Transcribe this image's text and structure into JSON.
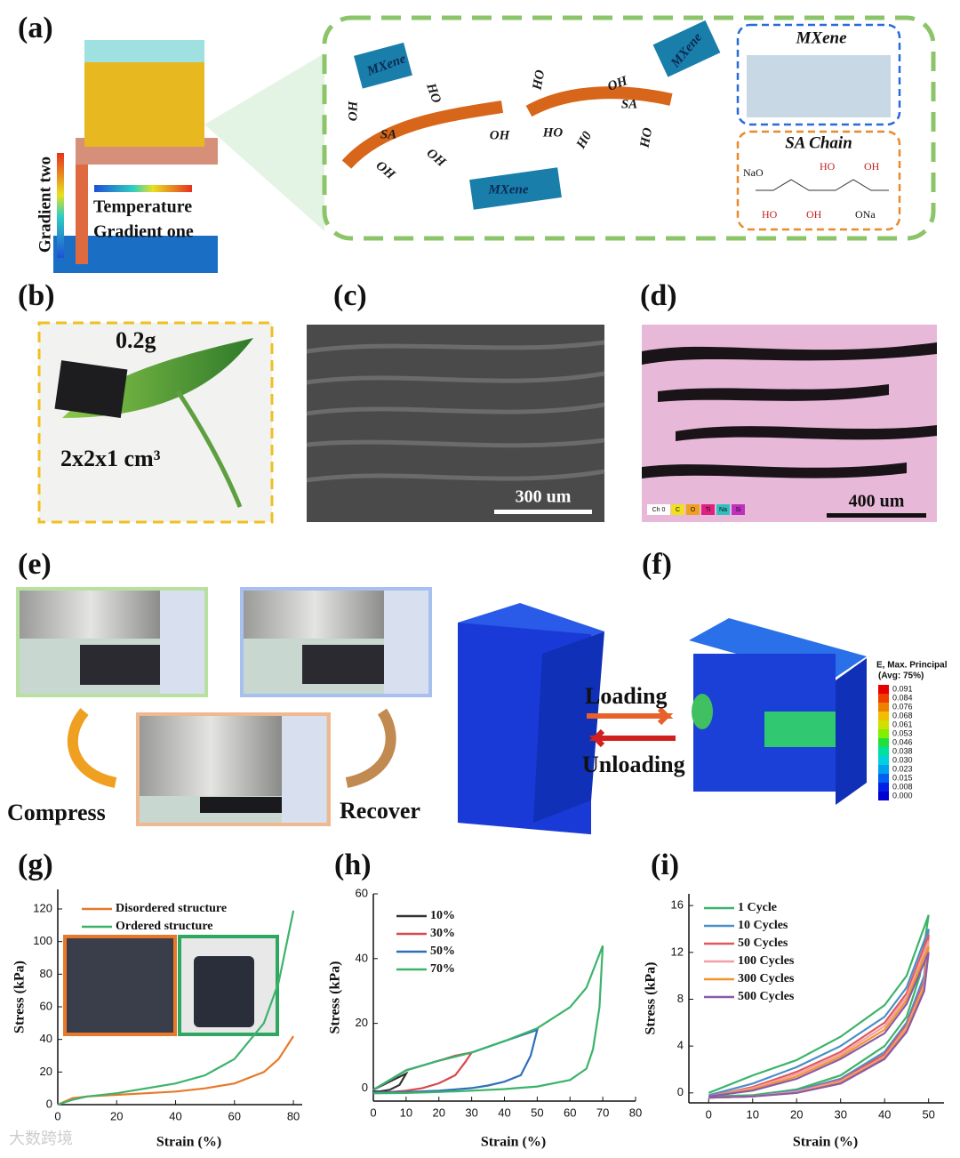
{
  "panels": {
    "a": {
      "label": "(a)",
      "gradient_two": "Gradient two",
      "temperature": "Temperature",
      "gradient_one": "Gradient one",
      "diagram": [
        "MXene",
        "OH",
        "HO",
        "SA",
        "OH",
        "OH",
        "OH",
        "HO",
        "MXene",
        "HO",
        "OH",
        "MXene",
        "SA",
        "H0",
        "HO"
      ],
      "mxene_box": "MXene",
      "sa_box": "SA Chain",
      "chem": [
        "NaO",
        "HO",
        "OH",
        "HO",
        "OH",
        "ONa"
      ]
    },
    "b": {
      "label": "(b)",
      "mass": "0.2g",
      "size": "2x2x1 cm³"
    },
    "c": {
      "label": "(c)",
      "scale": "300 um"
    },
    "d": {
      "label": "(d)",
      "scale": "400 um",
      "elements": [
        "Ch 0",
        "C",
        "O",
        "Ti",
        "Na",
        "Si"
      ]
    },
    "e": {
      "label": "(e)",
      "compress": "Compress",
      "recover": "Recover"
    },
    "f": {
      "label": "(f)",
      "loading": "Loading",
      "unloading": "Unloading",
      "legend_title": "E, Max. Principal",
      "legend_sub": "(Avg: 75%)",
      "scale": [
        "0.091",
        "0.084",
        "0.076",
        "0.068",
        "0.061",
        "0.053",
        "0.046",
        "0.038",
        "0.030",
        "0.023",
        "0.015",
        "0.008",
        "0.000"
      ]
    },
    "watermark": "大数跨境"
  },
  "chart_data": [
    {
      "type": "line",
      "panel": "(g)",
      "xlabel": "Strain (%)",
      "ylabel": "Stress (kPa)",
      "xlim": [
        0,
        83
      ],
      "ylim": [
        0,
        132
      ],
      "xticks": [
        0,
        20,
        40,
        60,
        80
      ],
      "yticks": [
        0,
        20,
        40,
        60,
        80,
        100,
        120
      ],
      "series": [
        {
          "name": "Disordered structure",
          "color": "#e8792a",
          "x": [
            0,
            5,
            10,
            20,
            30,
            40,
            50,
            60,
            70,
            75,
            80
          ],
          "values": [
            0,
            4,
            5,
            6,
            7,
            8,
            10,
            13,
            20,
            28,
            42
          ]
        },
        {
          "name": "Ordered structure",
          "color": "#3cb36a",
          "x": [
            0,
            5,
            10,
            20,
            30,
            40,
            50,
            60,
            70,
            75,
            80
          ],
          "values": [
            0,
            3,
            5,
            7,
            10,
            13,
            18,
            28,
            50,
            75,
            119
          ]
        }
      ]
    },
    {
      "type": "line",
      "panel": "(h)",
      "xlabel": "Strain (%)",
      "ylabel": "Stress (kPa)",
      "xlim": [
        0,
        80
      ],
      "ylim": [
        -4,
        60
      ],
      "xticks": [
        0,
        10,
        20,
        30,
        40,
        50,
        60,
        70,
        80
      ],
      "yticks": [
        0,
        20,
        40,
        60
      ],
      "series": [
        {
          "name": "10%",
          "color": "#333333",
          "x": [
            0,
            2,
            5,
            8,
            10,
            8,
            5,
            2,
            0
          ],
          "values": [
            -0.5,
            0.5,
            2,
            3.5,
            4.5,
            1,
            -0.5,
            -1,
            -1
          ]
        },
        {
          "name": "30%",
          "color": "#d9484a",
          "x": [
            0,
            5,
            10,
            15,
            20,
            25,
            30,
            28,
            25,
            20,
            15,
            10,
            5,
            0
          ],
          "values": [
            -0.5,
            2.5,
            5.5,
            7,
            8.5,
            10,
            11,
            8,
            4,
            1.5,
            0,
            -0.8,
            -1.2,
            -1.3
          ]
        },
        {
          "name": "50%",
          "color": "#2f6fb7",
          "x": [
            0,
            10,
            20,
            30,
            40,
            50,
            48,
            45,
            40,
            35,
            30,
            20,
            10,
            0
          ],
          "values": [
            -0.5,
            5.5,
            8.5,
            11,
            14.5,
            18,
            10,
            4,
            2,
            0.8,
            0,
            -0.8,
            -1.2,
            -1.4
          ]
        },
        {
          "name": "70%",
          "color": "#3cb36a",
          "x": [
            0,
            10,
            20,
            30,
            40,
            50,
            60,
            65,
            70,
            69,
            67,
            65,
            60,
            50,
            40,
            30,
            20,
            10,
            0
          ],
          "values": [
            -0.5,
            5.5,
            8.5,
            11,
            14.5,
            18.5,
            25,
            31,
            44,
            25,
            12,
            6,
            2.5,
            0.5,
            -0.3,
            -0.8,
            -1.2,
            -1.5,
            -1.6
          ]
        }
      ]
    },
    {
      "type": "line",
      "panel": "(i)",
      "xlabel": "Strain (%)",
      "ylabel": "Stress (kPa)",
      "xlim": [
        -4.5,
        53.5
      ],
      "ylim": [
        -0.85,
        17
      ],
      "xticks": [
        0,
        10,
        20,
        30,
        40,
        50
      ],
      "yticks": [
        0,
        4,
        8,
        12,
        16
      ],
      "series": [
        {
          "name": "1 Cycle",
          "color": "#3cb36a",
          "x": [
            0,
            10,
            20,
            30,
            40,
            45,
            50,
            48,
            45,
            40,
            30,
            20,
            10,
            0
          ],
          "values": [
            0,
            1.5,
            2.8,
            4.8,
            7.5,
            10,
            15.2,
            10,
            6.5,
            4,
            1.5,
            0.3,
            -0.2,
            -0.3
          ]
        },
        {
          "name": "10 Cycles",
          "color": "#4a90c8",
          "x": [
            0,
            10,
            20,
            30,
            40,
            45,
            50,
            49,
            45,
            40,
            30,
            20,
            10,
            0
          ],
          "values": [
            -0.2,
            0.8,
            2.2,
            4,
            6.5,
            9,
            14,
            10,
            6,
            3.5,
            1.2,
            0.2,
            -0.3,
            -0.4
          ]
        },
        {
          "name": "50 Cycles",
          "color": "#e0585a",
          "x": [
            0,
            10,
            20,
            30,
            40,
            45,
            50,
            49,
            45,
            40,
            30,
            20,
            10,
            0
          ],
          "values": [
            -0.3,
            0.5,
            1.8,
            3.5,
            6,
            8.5,
            13.5,
            9.5,
            5.8,
            3.3,
            1.1,
            0.1,
            -0.3,
            -0.4
          ]
        },
        {
          "name": "100 Cycles",
          "color": "#f0a0a8",
          "x": [
            0,
            10,
            20,
            30,
            40,
            45,
            50,
            49,
            45,
            40,
            30,
            20,
            10,
            0
          ],
          "values": [
            -0.3,
            0.4,
            1.6,
            3.3,
            5.7,
            8.2,
            13,
            9.2,
            5.6,
            3.1,
            1,
            0.1,
            -0.3,
            -0.4
          ]
        },
        {
          "name": "300 Cycles",
          "color": "#f0962a",
          "x": [
            0,
            10,
            20,
            30,
            40,
            45,
            50,
            49,
            45,
            40,
            30,
            20,
            10,
            0
          ],
          "values": [
            -0.3,
            0.3,
            1.4,
            3.1,
            5.4,
            7.9,
            12.5,
            9,
            5.4,
            3,
            0.9,
            0,
            -0.3,
            -0.4
          ]
        },
        {
          "name": "500 Cycles",
          "color": "#8a5aa8",
          "x": [
            0,
            10,
            20,
            30,
            40,
            45,
            50,
            49,
            45,
            40,
            30,
            20,
            10,
            0
          ],
          "values": [
            -0.3,
            0.2,
            1.2,
            2.9,
            5.1,
            7.6,
            12,
            8.7,
            5.2,
            2.9,
            0.8,
            0,
            -0.3,
            -0.4
          ]
        }
      ]
    }
  ]
}
